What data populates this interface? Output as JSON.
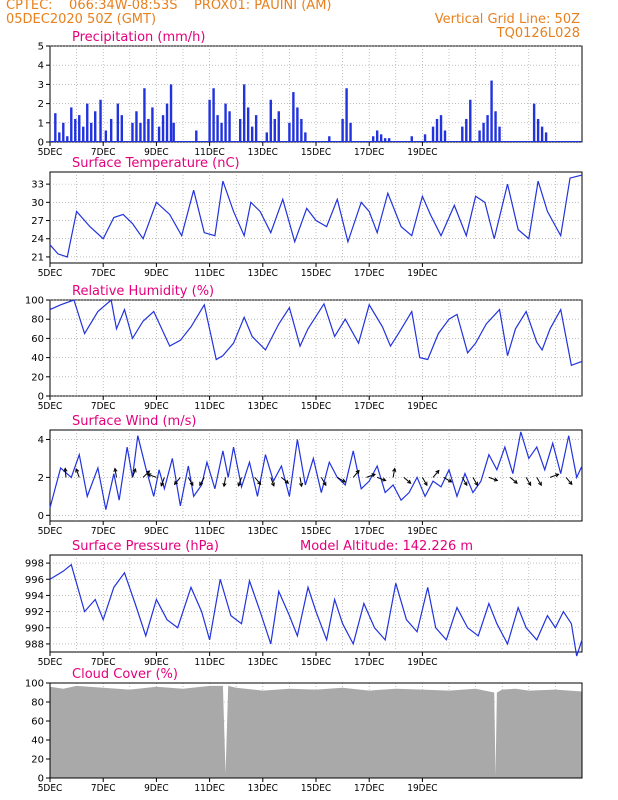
{
  "header": {
    "line1_left": "CPTEC:    066:34W-08:53S    PROX01: PAUINI (AM)",
    "line2_left": "05DEC2020 50Z (GMT)",
    "line2_right": "Vertical Grid Line: 50Z",
    "line3_right": "TQ0126L028"
  },
  "colors": {
    "header": "#e8801e",
    "title": "#e4007c",
    "series": "#2233dd",
    "cloud": "#a9a9a9",
    "grid": "#999999"
  },
  "chart_data": [
    {
      "type": "bar",
      "title": "Precipitation (mm/h)",
      "x_ticks": [
        "5DEC",
        "7DEC",
        "9DEC",
        "11DEC",
        "13DEC",
        "15DEC",
        "17DEC",
        "19DEC"
      ],
      "ylim": [
        0,
        5
      ],
      "y_ticks": [
        "0",
        "1",
        "2",
        "3",
        "4",
        "5"
      ],
      "x": [
        0.2,
        0.35,
        0.5,
        0.65,
        0.8,
        0.95,
        1.1,
        1.25,
        1.4,
        1.55,
        1.7,
        1.9,
        2.1,
        2.3,
        2.55,
        2.7,
        3.1,
        3.25,
        3.4,
        3.55,
        3.7,
        3.85,
        4.1,
        4.25,
        4.4,
        4.55,
        4.65,
        5.5,
        6.0,
        6.15,
        6.3,
        6.45,
        6.6,
        6.75,
        7.15,
        7.3,
        7.45,
        7.6,
        7.75,
        8.15,
        8.3,
        8.45,
        8.6,
        9.0,
        9.15,
        9.3,
        9.45,
        9.6,
        10.5,
        11.0,
        11.15,
        11.3,
        12.15,
        12.3,
        12.45,
        12.6,
        12.75,
        13.6,
        14.1,
        14.4,
        14.55,
        14.7,
        14.85,
        15.5,
        15.65,
        15.8,
        16.15,
        16.3,
        16.45,
        16.6,
        16.75,
        16.9,
        18.2,
        18.35,
        18.5,
        18.65
      ],
      "values": [
        1.5,
        0.5,
        1.0,
        0.3,
        1.8,
        1.2,
        1.4,
        0.8,
        2.0,
        1.0,
        1.6,
        2.2,
        0.6,
        1.2,
        2.0,
        1.4,
        1.0,
        1.6,
        1.0,
        2.8,
        1.2,
        1.8,
        0.8,
        1.4,
        2.0,
        3.0,
        1.0,
        0.6,
        2.2,
        2.8,
        1.4,
        1.0,
        2.0,
        1.6,
        1.2,
        3.0,
        1.8,
        0.8,
        1.4,
        0.5,
        2.2,
        1.2,
        1.6,
        1.0,
        2.6,
        1.8,
        1.2,
        0.5,
        0.3,
        1.2,
        2.8,
        1.0,
        0.3,
        0.6,
        0.4,
        0.2,
        0.2,
        0.3,
        0.4,
        0.8,
        1.2,
        1.4,
        0.6,
        0.8,
        1.2,
        2.2,
        0.6,
        1.0,
        1.4,
        3.2,
        1.6,
        0.8,
        2.0,
        1.2,
        0.8,
        0.5
      ]
    },
    {
      "type": "line",
      "title": "Surface Temperature (nC)",
      "x_ticks": [
        "5DEC",
        "7DEC",
        "9DEC",
        "11DEC",
        "13DEC",
        "15DEC",
        "17DEC",
        "19DEC"
      ],
      "ylim": [
        20,
        35
      ],
      "y_ticks": [
        "21",
        "24",
        "27",
        "30",
        "33"
      ],
      "x": [
        0,
        0.3,
        0.65,
        1.0,
        1.5,
        2.0,
        2.4,
        2.75,
        3.1,
        3.5,
        4.0,
        4.5,
        4.95,
        5.4,
        5.8,
        6.2,
        6.5,
        6.9,
        7.3,
        7.55,
        7.9,
        8.3,
        8.75,
        9.2,
        9.65,
        10.0,
        10.4,
        10.8,
        11.2,
        11.7,
        12.0,
        12.3,
        12.7,
        13.2,
        13.6,
        14.0,
        14.3,
        14.7,
        15.2,
        15.65,
        16.0,
        16.35,
        16.7,
        17.2,
        17.6,
        18.0,
        18.35,
        18.7,
        19.2,
        19.55,
        20.0
      ],
      "values": [
        23.0,
        21.5,
        21.0,
        28.5,
        26.0,
        24.0,
        27.5,
        28.0,
        26.5,
        24.0,
        30.0,
        28.0,
        24.5,
        32.0,
        25.0,
        24.5,
        33.5,
        28.5,
        24.5,
        30.0,
        28.5,
        25.0,
        30.5,
        23.5,
        29.0,
        27.0,
        26.0,
        30.5,
        23.5,
        30.0,
        28.5,
        25.0,
        31.5,
        26.0,
        24.5,
        31.0,
        28.0,
        24.5,
        29.5,
        24.5,
        31.0,
        30.0,
        24.0,
        33.0,
        25.5,
        24.0,
        33.5,
        28.5,
        24.5,
        34.0,
        34.5
      ]
    },
    {
      "type": "line",
      "title": "Relative Humidity (%)",
      "x_ticks": [
        "5DEC",
        "7DEC",
        "9DEC",
        "11DEC",
        "13DEC",
        "15DEC",
        "17DEC",
        "19DEC"
      ],
      "ylim": [
        0,
        100
      ],
      "y_ticks": [
        "0",
        "20",
        "40",
        "60",
        "80",
        "100"
      ],
      "x": [
        0,
        0.4,
        0.9,
        1.3,
        1.8,
        2.3,
        2.5,
        2.8,
        3.1,
        3.5,
        3.9,
        4.5,
        4.9,
        5.3,
        5.8,
        6.25,
        6.5,
        6.9,
        7.3,
        7.6,
        8.1,
        8.6,
        9.0,
        9.4,
        9.7,
        10.3,
        10.7,
        11.1,
        11.6,
        12.0,
        12.5,
        12.8,
        13.1,
        13.6,
        13.9,
        14.2,
        14.6,
        15.0,
        15.3,
        15.7,
        16.0,
        16.4,
        16.9,
        17.2,
        17.5,
        17.9,
        18.3,
        18.5,
        18.8,
        19.2,
        19.6,
        20.0
      ],
      "values": [
        90,
        95,
        100,
        65,
        88,
        100,
        70,
        90,
        60,
        78,
        88,
        52,
        58,
        72,
        95,
        38,
        42,
        55,
        82,
        62,
        48,
        75,
        92,
        52,
        70,
        96,
        62,
        80,
        55,
        95,
        72,
        52,
        65,
        88,
        40,
        38,
        65,
        80,
        85,
        45,
        55,
        75,
        90,
        42,
        70,
        88,
        56,
        48,
        70,
        90,
        32,
        36
      ]
    },
    {
      "type": "line",
      "title": "Surface Wind (m/s)",
      "x_ticks": [
        "5DEC",
        "7DEC",
        "9DEC",
        "11DEC",
        "13DEC",
        "15DEC",
        "17DEC",
        "19DEC"
      ],
      "ylim": [
        -0.3,
        4.5
      ],
      "y_ticks": [
        "0",
        "2",
        "4"
      ],
      "x": [
        0,
        0.4,
        0.8,
        1.1,
        1.4,
        1.8,
        2.1,
        2.4,
        2.6,
        2.9,
        3.1,
        3.3,
        3.6,
        3.9,
        4.1,
        4.3,
        4.6,
        4.9,
        5.2,
        5.4,
        5.7,
        5.9,
        6.2,
        6.5,
        6.7,
        6.9,
        7.2,
        7.5,
        7.8,
        8.1,
        8.4,
        8.7,
        9.0,
        9.3,
        9.6,
        9.9,
        10.2,
        10.5,
        10.8,
        11.1,
        11.4,
        11.7,
        12.0,
        12.3,
        12.6,
        12.9,
        13.2,
        13.5,
        13.8,
        14.1,
        14.4,
        14.7,
        15.0,
        15.3,
        15.6,
        15.9,
        16.2,
        16.5,
        16.8,
        17.1,
        17.4,
        17.7,
        18.0,
        18.3,
        18.6,
        18.9,
        19.2,
        19.5,
        19.8,
        20.0
      ],
      "values": [
        0.4,
        2.5,
        2.0,
        3.2,
        1.0,
        2.5,
        0.3,
        2.2,
        0.8,
        3.6,
        2.0,
        4.2,
        2.5,
        1.0,
        2.4,
        1.4,
        3.0,
        0.5,
        2.6,
        1.0,
        1.6,
        2.8,
        1.4,
        3.4,
        2.0,
        3.6,
        1.5,
        2.8,
        1.0,
        3.2,
        1.8,
        2.6,
        1.0,
        4.0,
        1.6,
        3.0,
        1.2,
        2.8,
        2.0,
        1.6,
        3.4,
        1.4,
        1.8,
        2.6,
        1.2,
        1.6,
        0.8,
        1.2,
        2.0,
        1.0,
        1.8,
        1.5,
        2.4,
        1.0,
        2.2,
        1.2,
        1.8,
        3.2,
        2.4,
        3.6,
        2.2,
        4.4,
        3.0,
        3.6,
        2.4,
        3.8,
        2.2,
        4.2,
        2.0,
        2.6
      ],
      "vectors": [
        [
          0.6,
          95
        ],
        [
          1.1,
          110
        ],
        [
          2.5,
          100
        ],
        [
          3.1,
          70
        ],
        [
          3.5,
          45
        ],
        [
          4.0,
          160
        ],
        [
          4.3,
          250
        ],
        [
          4.9,
          230
        ],
        [
          5.2,
          300
        ],
        [
          5.8,
          240
        ],
        [
          6.6,
          260
        ],
        [
          7.2,
          250
        ],
        [
          7.7,
          310
        ],
        [
          8.3,
          290
        ],
        [
          8.7,
          320
        ],
        [
          9.4,
          280
        ],
        [
          10.2,
          300
        ],
        [
          10.8,
          330
        ],
        [
          11.4,
          50
        ],
        [
          11.9,
          20
        ],
        [
          12.3,
          340
        ],
        [
          12.9,
          80
        ],
        [
          13.3,
          320
        ],
        [
          14.0,
          300
        ],
        [
          14.4,
          50
        ],
        [
          14.8,
          330
        ],
        [
          15.5,
          300
        ],
        [
          15.9,
          300
        ],
        [
          16.5,
          340
        ],
        [
          17.3,
          320
        ],
        [
          17.9,
          300
        ],
        [
          18.3,
          300
        ],
        [
          18.8,
          20
        ],
        [
          19.4,
          310
        ]
      ]
    },
    {
      "type": "line",
      "title": "Surface Pressure (hPa)",
      "annotation": "Model Altitude: 142.226 m",
      "x_ticks": [
        "5DEC",
        "7DEC",
        "9DEC",
        "11DEC",
        "13DEC",
        "15DEC",
        "17DEC",
        "19DEC"
      ],
      "ylim": [
        987,
        999
      ],
      "y_ticks": [
        "988",
        "990",
        "992",
        "994",
        "996",
        "998"
      ],
      "x": [
        0,
        0.5,
        0.8,
        1.3,
        1.7,
        2.0,
        2.4,
        2.8,
        3.2,
        3.6,
        4.0,
        4.4,
        4.8,
        5.3,
        5.7,
        6.0,
        6.4,
        6.8,
        7.2,
        7.5,
        7.9,
        8.3,
        8.6,
        9.0,
        9.3,
        9.7,
        10.0,
        10.4,
        10.7,
        11.0,
        11.4,
        11.8,
        12.2,
        12.6,
        13.0,
        13.4,
        13.8,
        14.2,
        14.5,
        14.9,
        15.3,
        15.7,
        16.1,
        16.5,
        16.8,
        17.2,
        17.6,
        17.9,
        18.3,
        18.7,
        19.0,
        19.3,
        19.6,
        19.8,
        20.0
      ],
      "values": [
        996.0,
        997.0,
        997.8,
        992.0,
        993.5,
        991.0,
        995.0,
        996.8,
        993.0,
        989.0,
        993.5,
        991.0,
        990.0,
        995.0,
        992.0,
        988.5,
        996.0,
        991.5,
        990.5,
        995.8,
        992.0,
        988.0,
        994.5,
        991.5,
        989.0,
        995.0,
        992.0,
        988.5,
        993.5,
        990.5,
        988.0,
        993.0,
        990.0,
        988.5,
        995.5,
        991.0,
        989.5,
        995.0,
        990.0,
        988.5,
        992.5,
        990.0,
        989.0,
        993.0,
        990.5,
        988.0,
        992.5,
        990.0,
        988.5,
        991.5,
        990.0,
        992.0,
        990.5,
        986.5,
        988.5
      ]
    },
    {
      "type": "area",
      "title": "Cloud Cover (%)",
      "x_ticks": [
        "5DEC",
        "7DEC",
        "9DEC",
        "11DEC",
        "13DEC",
        "15DEC",
        "17DEC",
        "19DEC"
      ],
      "ylim": [
        0,
        100
      ],
      "y_ticks": [
        "0",
        "20",
        "40",
        "60",
        "80",
        "100"
      ],
      "x": [
        0,
        0.5,
        1.0,
        2.0,
        3.0,
        4.0,
        5.0,
        6.0,
        6.5,
        6.6,
        6.7,
        7.0,
        8.0,
        9.0,
        10.0,
        11.0,
        12.0,
        13.0,
        14.0,
        15.0,
        16.0,
        16.7,
        16.75,
        16.8,
        17.0,
        17.5,
        18.0,
        19.0,
        20.0
      ],
      "values": [
        96,
        94,
        97,
        95,
        93,
        96,
        94,
        97,
        97,
        5,
        97,
        95,
        92,
        94,
        93,
        95,
        92,
        94,
        93,
        92,
        94,
        90,
        2,
        90,
        93,
        94,
        92,
        93,
        91
      ]
    }
  ]
}
